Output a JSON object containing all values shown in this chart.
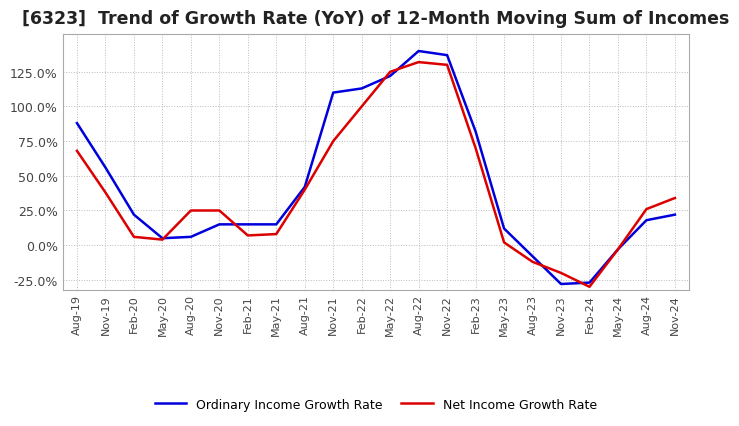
{
  "title": "[6323]  Trend of Growth Rate (YoY) of 12-Month Moving Sum of Incomes",
  "title_fontsize": 12.5,
  "ylim": [
    -0.32,
    1.52
  ],
  "yticks": [
    -0.25,
    0.0,
    0.25,
    0.5,
    0.75,
    1.0,
    1.25
  ],
  "ytick_labels": [
    "-25.0%",
    "0.0%",
    "25.0%",
    "50.0%",
    "75.0%",
    "100.0%",
    "125.0%"
  ],
  "background_color": "#ffffff",
  "grid_color": "#bbbbbb",
  "ordinary_color": "#0000dd",
  "net_color": "#dd0000",
  "legend_labels": [
    "Ordinary Income Growth Rate",
    "Net Income Growth Rate"
  ],
  "x_labels": [
    "Aug-19",
    "Nov-19",
    "Feb-20",
    "May-20",
    "Aug-20",
    "Nov-20",
    "Feb-21",
    "May-21",
    "Aug-21",
    "Nov-21",
    "Feb-22",
    "May-22",
    "Aug-22",
    "Nov-22",
    "Feb-23",
    "May-23",
    "Aug-23",
    "Nov-23",
    "Feb-24",
    "May-24",
    "Aug-24",
    "Nov-24"
  ],
  "ordinary_income_growth": [
    0.88,
    0.56,
    0.22,
    0.05,
    0.06,
    0.15,
    0.15,
    0.15,
    0.42,
    1.1,
    1.13,
    1.22,
    1.4,
    1.37,
    0.82,
    0.12,
    -0.08,
    -0.28,
    -0.27,
    -0.03,
    0.18,
    0.22
  ],
  "net_income_growth": [
    0.68,
    0.38,
    0.06,
    0.04,
    0.25,
    0.25,
    0.07,
    0.08,
    0.4,
    0.75,
    1.0,
    1.25,
    1.32,
    1.3,
    0.7,
    0.02,
    -0.12,
    -0.2,
    -0.3,
    -0.03,
    0.26,
    0.34
  ]
}
